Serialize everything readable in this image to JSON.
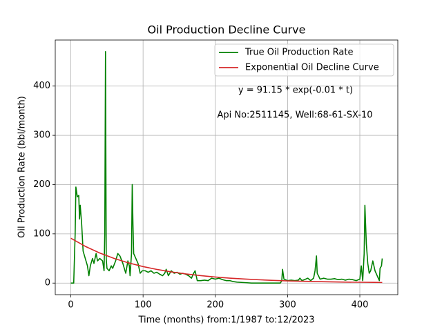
{
  "chart_data": {
    "type": "line",
    "title": "Oil Production Decline Curve",
    "xlabel": "Time (months) from:1/1987 to:12/2023",
    "ylabel": "Oil Production Rate (bbl/month)",
    "annotations": [
      "y = 91.15 * exp(-0.01 * t)",
      "Api No:2511145, Well:68-61-SX-10"
    ],
    "xlim": [
      -21.55,
      452.55
    ],
    "xticks": [
      0,
      100,
      200,
      300,
      400
    ],
    "ylim": [
      -23.5,
      493.5
    ],
    "yticks": [
      0,
      100,
      200,
      300,
      400
    ],
    "grid": true,
    "legend": "upper right",
    "series": [
      {
        "name": "True Oil Production Rate",
        "color": "#008000",
        "x": [
          0,
          4,
          6,
          7,
          9,
          11,
          12,
          13,
          15,
          17,
          20,
          23,
          25,
          27,
          30,
          32,
          35,
          37,
          40,
          44,
          46,
          47,
          48,
          49,
          50,
          53,
          56,
          58,
          62,
          65,
          68,
          72,
          76,
          79,
          81,
          82,
          84,
          85,
          86,
          87,
          90,
          93,
          96,
          99,
          103,
          107,
          111,
          115,
          119,
          123,
          127,
          130,
          132,
          135,
          139,
          143,
          147,
          151,
          155,
          159,
          163,
          167,
          170,
          172,
          175,
          180,
          185,
          190,
          195,
          200,
          205,
          210,
          215,
          220,
          225,
          230,
          240,
          250,
          260,
          270,
          280,
          290,
          292,
          293,
          295,
          300,
          305,
          310,
          315,
          317,
          320,
          325,
          328,
          332,
          336,
          338,
          340,
          341,
          345,
          350,
          355,
          360,
          365,
          370,
          375,
          380,
          385,
          390,
          395,
          400,
          402,
          404,
          406,
          407,
          409,
          411,
          413,
          415,
          418,
          421,
          424,
          427,
          428,
          430,
          431
        ],
        "values": [
          0,
          0,
          100,
          195,
          175,
          178,
          130,
          158,
          120,
          65,
          50,
          35,
          15,
          35,
          50,
          40,
          60,
          45,
          50,
          45,
          25,
          100,
          470,
          50,
          30,
          25,
          35,
          30,
          45,
          60,
          55,
          40,
          20,
          45,
          35,
          15,
          60,
          200,
          120,
          60,
          50,
          40,
          20,
          25,
          25,
          22,
          25,
          20,
          22,
          18,
          15,
          20,
          28,
          15,
          25,
          20,
          22,
          18,
          20,
          18,
          15,
          10,
          20,
          25,
          5,
          5,
          6,
          5,
          10,
          8,
          10,
          7,
          5,
          5,
          3,
          2,
          1,
          0,
          0,
          0,
          0,
          0,
          5,
          28,
          8,
          5,
          6,
          5,
          6,
          10,
          5,
          8,
          10,
          5,
          10,
          25,
          55,
          20,
          8,
          10,
          8,
          8,
          9,
          7,
          8,
          6,
          8,
          7,
          5,
          8,
          35,
          5,
          60,
          158,
          80,
          40,
          20,
          25,
          45,
          25,
          15,
          5,
          30,
          35,
          50
        ]
      },
      {
        "name": "Exponential Oil Decline Curve",
        "color": "#d62728",
        "x": [
          0,
          20,
          40,
          60,
          80,
          100,
          120,
          140,
          160,
          180,
          200,
          220,
          240,
          260,
          280,
          300,
          320,
          340,
          360,
          380,
          400,
          420,
          431
        ],
        "values": [
          91.15,
          74.6,
          61.1,
          50.0,
          41.0,
          33.5,
          27.5,
          22.5,
          18.4,
          15.1,
          12.3,
          10.1,
          8.3,
          6.8,
          5.5,
          4.5,
          3.7,
          3.0,
          2.5,
          2.0,
          1.7,
          1.4,
          1.2
        ]
      }
    ]
  }
}
